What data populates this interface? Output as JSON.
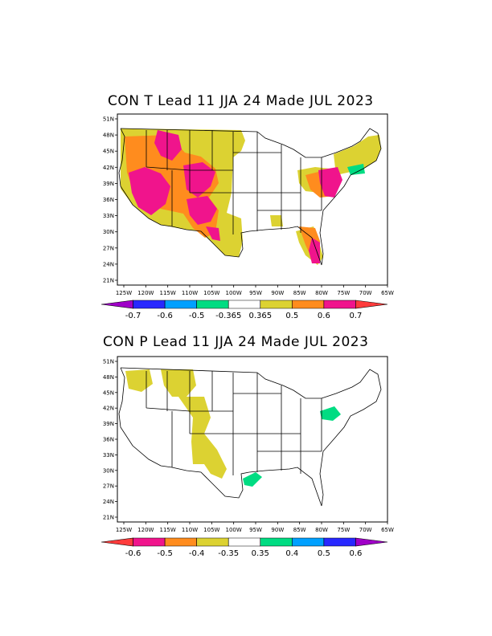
{
  "panels": [
    {
      "id": "temperature",
      "title": "CON T Lead 11 JJA 24 Made JUL 2023",
      "lat_labels": [
        "51N",
        "48N",
        "45N",
        "42N",
        "39N",
        "36N",
        "33N",
        "30N",
        "27N",
        "24N",
        "21N"
      ],
      "lon_labels": [
        "125W",
        "120W",
        "115W",
        "110W",
        "105W",
        "100W",
        "95W",
        "90W",
        "85W",
        "80W",
        "75W",
        "70W",
        "65W"
      ],
      "colorbar": {
        "labels": [
          "-0.7",
          "-0.6",
          "-0.5",
          "-0.365",
          "0.365",
          "0.5",
          "0.6",
          "0.7"
        ],
        "colors": [
          "#a000c8",
          "#2828ff",
          "#00a0ff",
          "#00dc82",
          "#ffffff",
          "#dcd232",
          "#ff8c1e",
          "#f0148c",
          "#ff3c3c"
        ]
      }
    },
    {
      "id": "precipitation",
      "title": "CON P  Lead 11 JJA 24 Made JUL 2023",
      "lat_labels": [
        "51N",
        "48N",
        "45N",
        "42N",
        "39N",
        "36N",
        "33N",
        "30N",
        "27N",
        "24N",
        "21N"
      ],
      "lon_labels": [
        "125W",
        "120W",
        "115W",
        "110W",
        "105W",
        "100W",
        "95W",
        "90W",
        "85W",
        "80W",
        "75W",
        "70W",
        "65W"
      ],
      "colorbar": {
        "labels": [
          "-0.6",
          "-0.5",
          "-0.4",
          "-0.35",
          "0.35",
          "0.4",
          "0.5",
          "0.6"
        ],
        "colors": [
          "#ff3c3c",
          "#f0148c",
          "#ff8c1e",
          "#dcd232",
          "#ffffff",
          "#00dc82",
          "#00a0ff",
          "#2828ff",
          "#a000c8"
        ]
      }
    }
  ]
}
